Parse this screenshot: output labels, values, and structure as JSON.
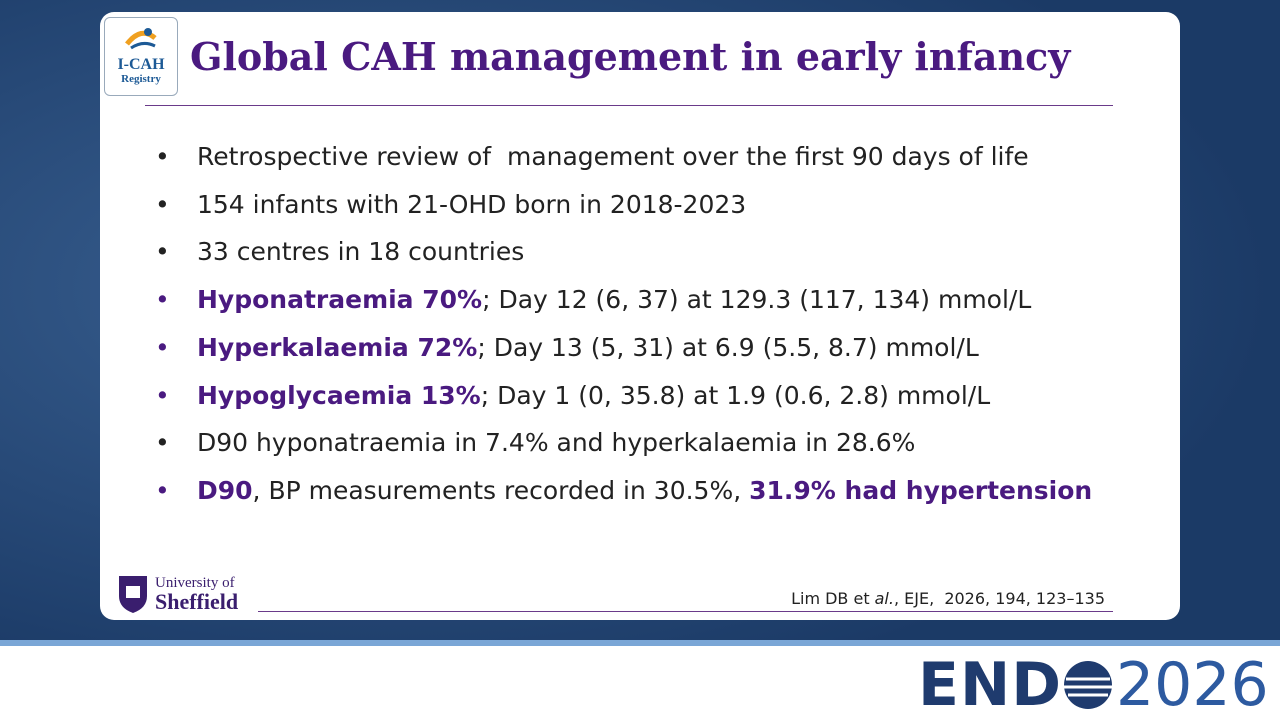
{
  "header": {
    "title": "Global CAH management in early infancy",
    "logo": [
      "I-CAH",
      "Registry"
    ]
  },
  "bullets": [
    {
      "parts": [
        {
          "text": "Retrospective review of  management over the first 90 days of life"
        }
      ]
    },
    {
      "parts": [
        {
          "text": "154 infants with 21-OHD born in 2018-2023"
        }
      ]
    },
    {
      "parts": [
        {
          "text": "33 centres in 18 countries"
        }
      ]
    },
    {
      "highlight": true,
      "parts": [
        {
          "text": "Hyponatraemia 70%",
          "bold": true
        },
        {
          "text": "; Day 12 (6, 37) at 129.3 (117, 134) mmol/L"
        }
      ]
    },
    {
      "highlight": true,
      "parts": [
        {
          "text": "Hyperkalaemia 72%",
          "bold": true
        },
        {
          "text": "; Day 13 (5, 31) at 6.9 (5.5, 8.7) mmol/L"
        }
      ]
    },
    {
      "highlight": true,
      "parts": [
        {
          "text": "Hypoglycaemia 13%",
          "bold": true
        },
        {
          "text": "; Day 1 (0, 35.8) at 1.9 (0.6, 2.8) mmol/L"
        }
      ]
    },
    {
      "parts": [
        {
          "text": "D90 hyponatraemia in 7.4% and hyperkalaemia in 28.6%"
        }
      ]
    },
    {
      "highlight": true,
      "parts": [
        {
          "text": "D90",
          "bold": true
        },
        {
          "text": ", BP measurements recorded in 30.5%, "
        },
        {
          "text": "31.9% had hypertension",
          "bold": true
        }
      ]
    }
  ],
  "footer": {
    "university": [
      "University of",
      "Sheffield"
    ],
    "citation": [
      {
        "text": "Lim DB et"
      },
      {
        "text": "al.",
        "italic": true
      },
      {
        "text": ", EJE,  2026, 194, 123–135"
      }
    ]
  },
  "banner": {
    "brand": "END",
    "year": "2026"
  }
}
